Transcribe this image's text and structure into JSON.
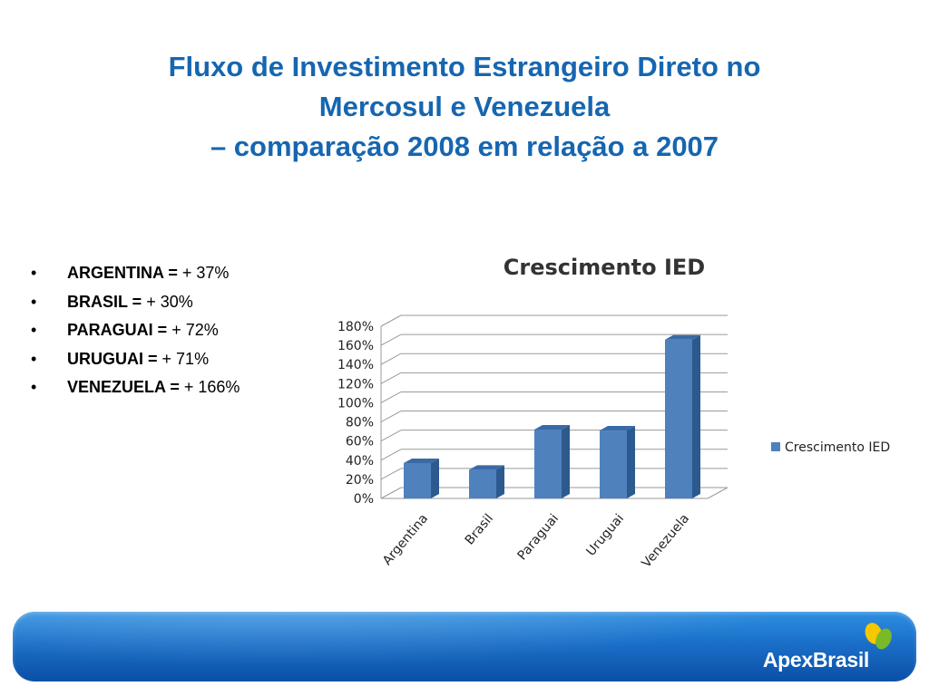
{
  "slide": {
    "title_lines": [
      "Fluxo de Investimento Estrangeiro Direto no",
      "Mercosul e Venezuela",
      "– comparação 2008 em relação a 2007"
    ]
  },
  "bullets": [
    {
      "country": "ARGENTINA =",
      "value": "+ 37%"
    },
    {
      "country": "BRASIL =",
      "value": "+ 30%"
    },
    {
      "country": "PARAGUAI =",
      "value": "+ 72%"
    },
    {
      "country": "URUGUAI =",
      "value": "+ 71%"
    },
    {
      "country": "VENEZUELA =",
      "value": "+ 166%"
    }
  ],
  "chart_data": {
    "type": "bar",
    "title": "Crescimento IED",
    "categories": [
      "Argentina",
      "Brasil",
      "Paraguai",
      "Uruguai",
      "Venezuela"
    ],
    "series": [
      {
        "name": "Crescimento IED",
        "values": [
          37,
          30,
          72,
          71,
          166
        ]
      }
    ],
    "yticks": [
      "0%",
      "20%",
      "40%",
      "60%",
      "80%",
      "100%",
      "120%",
      "140%",
      "160%",
      "180%"
    ],
    "ylim": [
      0,
      180
    ],
    "xlabel": "",
    "ylabel": "",
    "grid": true,
    "legend": "right",
    "style": "3d-column",
    "colors": {
      "bar": "#4f81bd",
      "bar_side": "#2c5a8f",
      "bar_top": "#3a6aa6"
    }
  },
  "footer": {
    "brand": "ApexBrasil",
    "colors": {
      "footer_top": "#2f8fe0",
      "footer_bottom": "#0b4fa6",
      "logo_yellow": "#f5c800",
      "logo_green": "#7ab929"
    }
  }
}
